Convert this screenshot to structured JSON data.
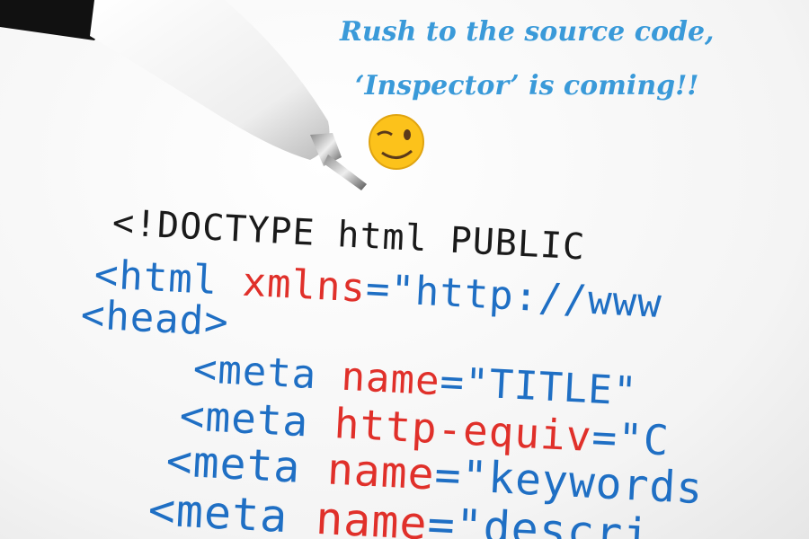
{
  "caption": [
    "Rush to the source code,",
    "‘Inspector’ is coming!!"
  ],
  "code": [
    [
      "<!DOCTYPE html PUBLIC"
    ],
    [
      "<html",
      "xmlns",
      "=\"http://www"
    ],
    [
      "<head>"
    ],
    [
      "<meta",
      "name",
      "=\"TITLE\""
    ],
    [
      "<meta",
      "http-equiv",
      "=\"C"
    ],
    [
      "<meta",
      "name",
      "=\"keywords"
    ],
    [
      "<meta",
      "name",
      "=\"descri"
    ]
  ]
}
